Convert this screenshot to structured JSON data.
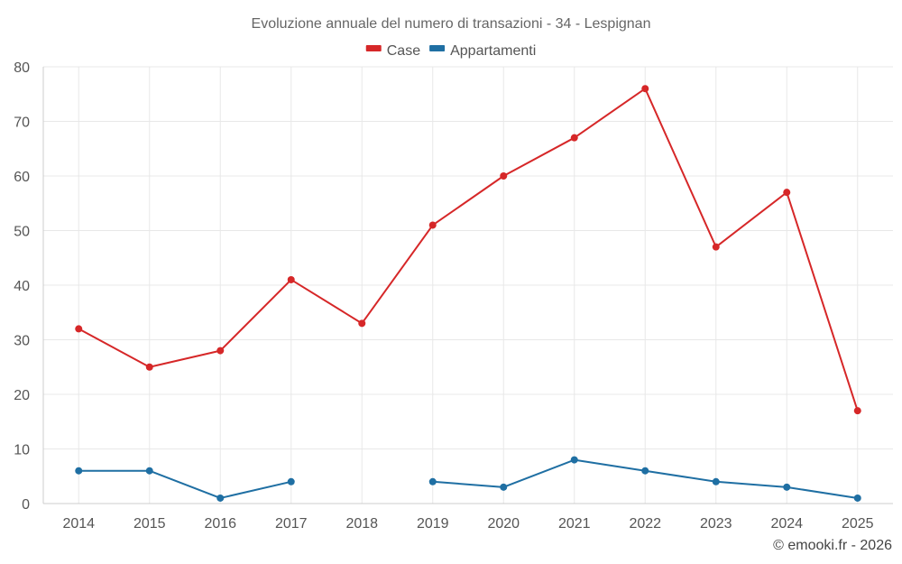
{
  "chart_data": {
    "type": "line",
    "title": "Evoluzione annuale del numero di transazioni - 34 - Lespignan",
    "categories": [
      "2014",
      "2015",
      "2016",
      "2017",
      "2018",
      "2019",
      "2020",
      "2021",
      "2022",
      "2023",
      "2024",
      "2025"
    ],
    "ylim": [
      0,
      80
    ],
    "yticks": [
      0,
      10,
      20,
      30,
      40,
      50,
      60,
      70,
      80
    ],
    "grid": true,
    "legend_position": "top-center",
    "series": [
      {
        "name": "Case",
        "color": "#d62728",
        "values": [
          32,
          25,
          28,
          41,
          33,
          51,
          60,
          67,
          76,
          47,
          57,
          17
        ]
      },
      {
        "name": "Appartamenti",
        "color": "#1f6fa3",
        "values": [
          6,
          6,
          1,
          4,
          null,
          4,
          3,
          8,
          6,
          4,
          3,
          1
        ]
      }
    ]
  },
  "credit": "© emooki.fr - 2026"
}
